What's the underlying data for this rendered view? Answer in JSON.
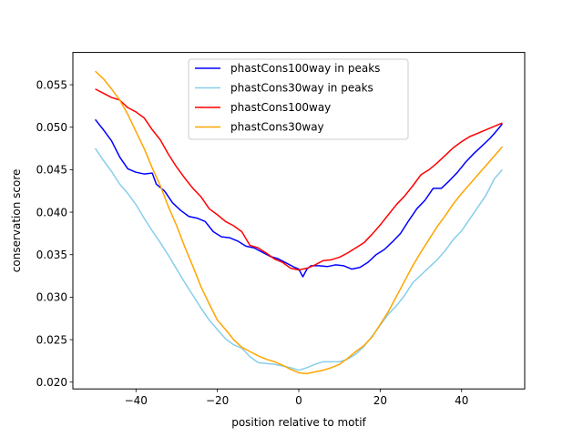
{
  "chart_data": {
    "type": "line",
    "xlabel": "position relative to motif",
    "ylabel": "conservation score",
    "xlim": [
      -55.5,
      55.5
    ],
    "ylim": [
      0.0192,
      0.0588
    ],
    "xticks": [
      -40,
      -20,
      0,
      20,
      40
    ],
    "yticks": [
      0.02,
      0.025,
      0.03,
      0.035,
      0.04,
      0.045,
      0.05,
      0.055
    ],
    "ytick_labels": [
      "0.020",
      "0.025",
      "0.030",
      "0.035",
      "0.040",
      "0.045",
      "0.050",
      "0.055"
    ],
    "grid": false,
    "legend_position": "upper center",
    "series": [
      {
        "name": "phastCons100way in peaks",
        "color": "#0000ff",
        "points": [
          [
            -50,
            0.0509
          ],
          [
            -48,
            0.0497
          ],
          [
            -46,
            0.0484
          ],
          [
            -44,
            0.0465
          ],
          [
            -42,
            0.0451
          ],
          [
            -40,
            0.0447
          ],
          [
            -38,
            0.0445
          ],
          [
            -36,
            0.0446
          ],
          [
            -35,
            0.0433
          ],
          [
            -33,
            0.0425
          ],
          [
            -31,
            0.0411
          ],
          [
            -29,
            0.0402
          ],
          [
            -27,
            0.0395
          ],
          [
            -25,
            0.0393
          ],
          [
            -23,
            0.0389
          ],
          [
            -21,
            0.0377
          ],
          [
            -19,
            0.0371
          ],
          [
            -17,
            0.037
          ],
          [
            -15,
            0.0366
          ],
          [
            -13,
            0.036
          ],
          [
            -11,
            0.0358
          ],
          [
            -9,
            0.0353
          ],
          [
            -7,
            0.0348
          ],
          [
            -5,
            0.0345
          ],
          [
            -3,
            0.034
          ],
          [
            -1,
            0.0335
          ],
          [
            0,
            0.0333
          ],
          [
            1,
            0.0324
          ],
          [
            2,
            0.0333
          ],
          [
            3,
            0.0337
          ],
          [
            5,
            0.0337
          ],
          [
            7,
            0.0336
          ],
          [
            9,
            0.0338
          ],
          [
            11,
            0.0337
          ],
          [
            13,
            0.0333
          ],
          [
            15,
            0.0335
          ],
          [
            17,
            0.0341
          ],
          [
            19,
            0.035
          ],
          [
            21,
            0.0356
          ],
          [
            23,
            0.0365
          ],
          [
            25,
            0.0375
          ],
          [
            27,
            0.039
          ],
          [
            29,
            0.0404
          ],
          [
            31,
            0.0414
          ],
          [
            33,
            0.0428
          ],
          [
            35,
            0.0428
          ],
          [
            37,
            0.0437
          ],
          [
            39,
            0.0447
          ],
          [
            41,
            0.0459
          ],
          [
            43,
            0.0469
          ],
          [
            45,
            0.0478
          ],
          [
            47,
            0.0487
          ],
          [
            49,
            0.0498
          ],
          [
            50,
            0.0504
          ]
        ]
      },
      {
        "name": "phastCons30way in peaks",
        "color": "#87ceeb",
        "points": [
          [
            -50,
            0.0475
          ],
          [
            -48,
            0.0461
          ],
          [
            -46,
            0.0448
          ],
          [
            -44,
            0.0433
          ],
          [
            -42,
            0.0422
          ],
          [
            -40,
            0.0409
          ],
          [
            -38,
            0.0393
          ],
          [
            -36,
            0.0378
          ],
          [
            -34,
            0.0364
          ],
          [
            -32,
            0.0349
          ],
          [
            -30,
            0.0333
          ],
          [
            -28,
            0.0317
          ],
          [
            -26,
            0.0302
          ],
          [
            -24,
            0.0287
          ],
          [
            -22,
            0.0273
          ],
          [
            -20,
            0.0262
          ],
          [
            -18,
            0.0251
          ],
          [
            -16,
            0.0244
          ],
          [
            -14,
            0.024
          ],
          [
            -12,
            0.023
          ],
          [
            -10,
            0.0223
          ],
          [
            -8,
            0.0222
          ],
          [
            -6,
            0.0221
          ],
          [
            -4,
            0.0219
          ],
          [
            -2,
            0.0217
          ],
          [
            0,
            0.0214
          ],
          [
            2,
            0.0217
          ],
          [
            4,
            0.0221
          ],
          [
            6,
            0.0224
          ],
          [
            8,
            0.0224
          ],
          [
            10,
            0.0224
          ],
          [
            12,
            0.0227
          ],
          [
            14,
            0.0233
          ],
          [
            16,
            0.0242
          ],
          [
            18,
            0.0254
          ],
          [
            20,
            0.0267
          ],
          [
            22,
            0.028
          ],
          [
            24,
            0.029
          ],
          [
            26,
            0.0302
          ],
          [
            28,
            0.0317
          ],
          [
            30,
            0.0326
          ],
          [
            32,
            0.0335
          ],
          [
            34,
            0.0344
          ],
          [
            36,
            0.0355
          ],
          [
            38,
            0.0368
          ],
          [
            40,
            0.0378
          ],
          [
            42,
            0.0392
          ],
          [
            44,
            0.0406
          ],
          [
            46,
            0.042
          ],
          [
            48,
            0.0439
          ],
          [
            50,
            0.045
          ]
        ]
      },
      {
        "name": "phastCons100way",
        "color": "#ff0000",
        "points": [
          [
            -50,
            0.0545
          ],
          [
            -48,
            0.054
          ],
          [
            -46,
            0.0535
          ],
          [
            -44,
            0.0532
          ],
          [
            -42,
            0.0523
          ],
          [
            -40,
            0.0518
          ],
          [
            -38,
            0.0511
          ],
          [
            -36,
            0.0497
          ],
          [
            -34,
            0.0485
          ],
          [
            -32,
            0.0468
          ],
          [
            -30,
            0.0453
          ],
          [
            -28,
            0.044
          ],
          [
            -26,
            0.0428
          ],
          [
            -24,
            0.0418
          ],
          [
            -22,
            0.0404
          ],
          [
            -20,
            0.0397
          ],
          [
            -18,
            0.0389
          ],
          [
            -16,
            0.0384
          ],
          [
            -14,
            0.0377
          ],
          [
            -12,
            0.0361
          ],
          [
            -10,
            0.0358
          ],
          [
            -8,
            0.0352
          ],
          [
            -6,
            0.0345
          ],
          [
            -4,
            0.0341
          ],
          [
            -2,
            0.0334
          ],
          [
            0,
            0.0332
          ],
          [
            2,
            0.0334
          ],
          [
            4,
            0.0338
          ],
          [
            6,
            0.0343
          ],
          [
            8,
            0.0344
          ],
          [
            10,
            0.0347
          ],
          [
            12,
            0.0352
          ],
          [
            14,
            0.0358
          ],
          [
            16,
            0.0364
          ],
          [
            18,
            0.0374
          ],
          [
            20,
            0.0385
          ],
          [
            22,
            0.0397
          ],
          [
            24,
            0.0409
          ],
          [
            26,
            0.0419
          ],
          [
            28,
            0.0431
          ],
          [
            30,
            0.0444
          ],
          [
            32,
            0.045
          ],
          [
            34,
            0.0458
          ],
          [
            36,
            0.0467
          ],
          [
            38,
            0.0476
          ],
          [
            40,
            0.0483
          ],
          [
            42,
            0.0489
          ],
          [
            44,
            0.0493
          ],
          [
            46,
            0.0497
          ],
          [
            48,
            0.0501
          ],
          [
            50,
            0.0505
          ]
        ]
      },
      {
        "name": "phastCons30way",
        "color": "#ffa500",
        "points": [
          [
            -50,
            0.0566
          ],
          [
            -48,
            0.0557
          ],
          [
            -46,
            0.0545
          ],
          [
            -44,
            0.0532
          ],
          [
            -42,
            0.0515
          ],
          [
            -40,
            0.0495
          ],
          [
            -38,
            0.0475
          ],
          [
            -36,
            0.0452
          ],
          [
            -34,
            0.0431
          ],
          [
            -32,
            0.0406
          ],
          [
            -30,
            0.0384
          ],
          [
            -28,
            0.0359
          ],
          [
            -26,
            0.0336
          ],
          [
            -24,
            0.0312
          ],
          [
            -22,
            0.0292
          ],
          [
            -20,
            0.0273
          ],
          [
            -18,
            0.0262
          ],
          [
            -16,
            0.025
          ],
          [
            -14,
            0.0241
          ],
          [
            -12,
            0.0236
          ],
          [
            -10,
            0.0231
          ],
          [
            -8,
            0.0227
          ],
          [
            -6,
            0.0224
          ],
          [
            -4,
            0.022
          ],
          [
            -2,
            0.0215
          ],
          [
            0,
            0.0211
          ],
          [
            2,
            0.021
          ],
          [
            4,
            0.0212
          ],
          [
            6,
            0.0214
          ],
          [
            8,
            0.0217
          ],
          [
            10,
            0.0221
          ],
          [
            12,
            0.0228
          ],
          [
            14,
            0.0236
          ],
          [
            16,
            0.0243
          ],
          [
            18,
            0.0253
          ],
          [
            20,
            0.0268
          ],
          [
            22,
            0.0283
          ],
          [
            24,
            0.0301
          ],
          [
            26,
            0.0319
          ],
          [
            28,
            0.0337
          ],
          [
            30,
            0.0353
          ],
          [
            32,
            0.0368
          ],
          [
            34,
            0.0383
          ],
          [
            36,
            0.0396
          ],
          [
            38,
            0.041
          ],
          [
            40,
            0.0422
          ],
          [
            42,
            0.0433
          ],
          [
            44,
            0.0444
          ],
          [
            46,
            0.0455
          ],
          [
            48,
            0.0466
          ],
          [
            50,
            0.0477
          ]
        ]
      }
    ]
  }
}
